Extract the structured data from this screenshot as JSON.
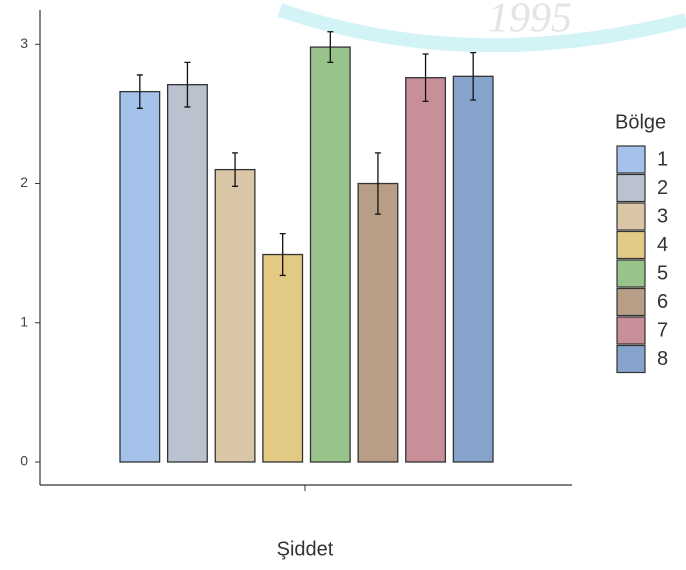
{
  "chart_data": {
    "type": "bar",
    "watermark": "1995",
    "x_label": "Şiddet",
    "categories": [
      null
    ],
    "legend_title": "Bölge",
    "legend": "right",
    "ylim": [
      0,
      3.15
    ],
    "yticks": [
      0,
      1,
      2,
      3
    ],
    "series": [
      {
        "name": "1",
        "color": "#a4c2ea",
        "values": [
          2.66
        ],
        "errors": [
          0.12
        ]
      },
      {
        "name": "2",
        "color": "#bac2cf",
        "values": [
          2.71
        ],
        "errors": [
          0.16
        ]
      },
      {
        "name": "3",
        "color": "#d9c6a6",
        "values": [
          2.1
        ],
        "errors": [
          0.12
        ]
      },
      {
        "name": "4",
        "color": "#e2c984",
        "values": [
          1.49
        ],
        "errors": [
          0.15
        ]
      },
      {
        "name": "5",
        "color": "#98c48c",
        "values": [
          2.98
        ],
        "errors": [
          0.11
        ]
      },
      {
        "name": "6",
        "color": "#b89e86",
        "values": [
          2.0
        ],
        "errors": [
          0.22
        ]
      },
      {
        "name": "7",
        "color": "#c88f99",
        "values": [
          2.76
        ],
        "errors": [
          0.17
        ]
      },
      {
        "name": "8",
        "color": "#86a4cb",
        "values": [
          2.77
        ],
        "errors": [
          0.17
        ]
      }
    ]
  }
}
